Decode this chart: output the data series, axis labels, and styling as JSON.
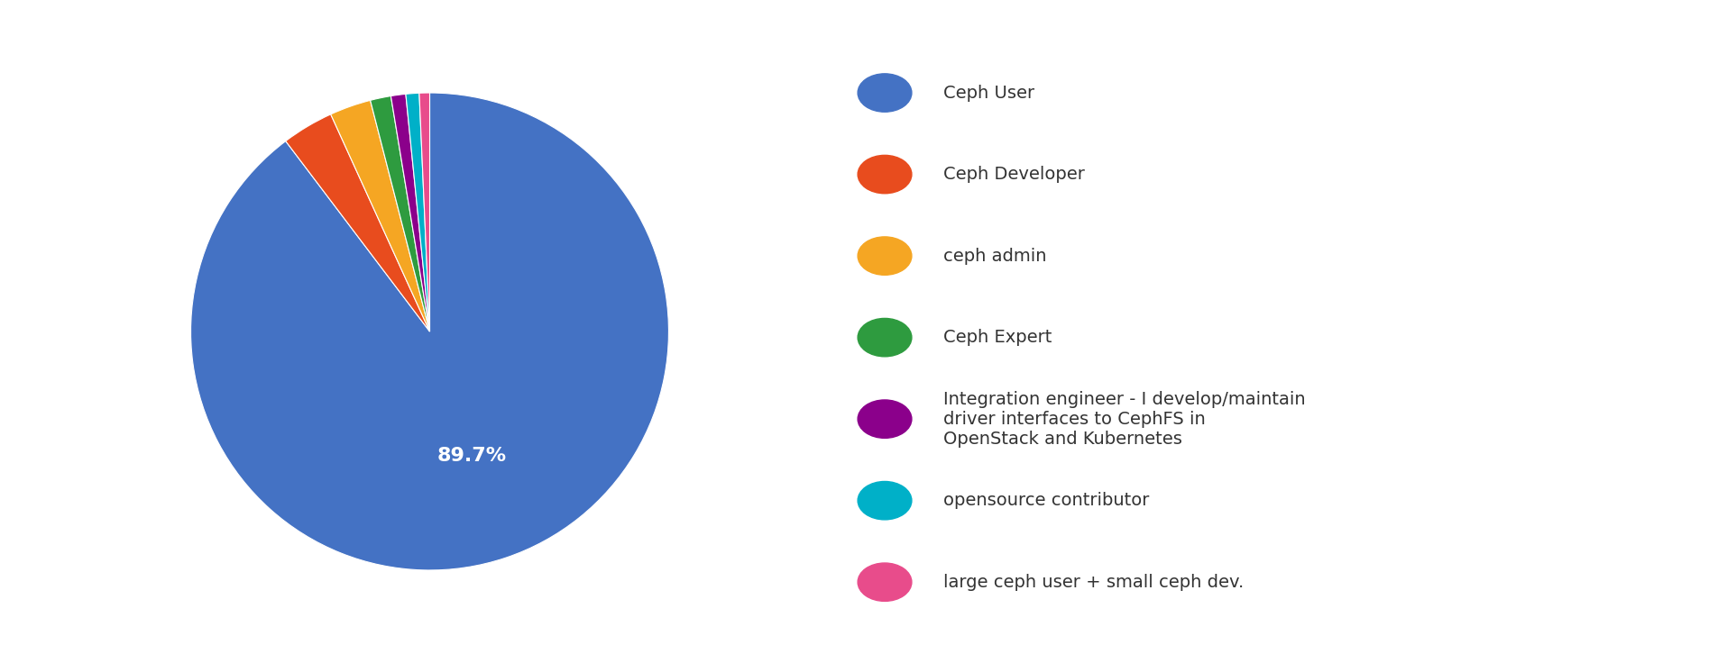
{
  "labels": [
    "Ceph User",
    "Ceph Developer",
    "ceph admin",
    "Ceph Expert",
    "Integration engineer - I develop/maintain\ndriver interfaces to CephFS in\nOpenStack and Kubernetes",
    "opensource contributor",
    "large ceph user + small ceph dev."
  ],
  "values": [
    89.7,
    3.5,
    2.8,
    1.4,
    1.0,
    0.9,
    0.7
  ],
  "colors": [
    "#4472C4",
    "#E84C1E",
    "#F5A623",
    "#2E9B3F",
    "#8B008B",
    "#00B0C8",
    "#E84C8B"
  ],
  "background_color": "#ffffff",
  "label_fontsize": 14,
  "pct_fontsize": 16
}
